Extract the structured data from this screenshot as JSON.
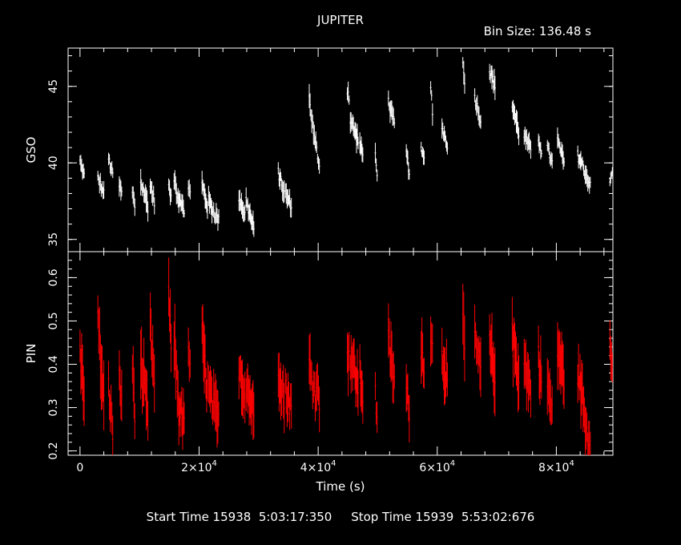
{
  "chart_data": {
    "type": "scatter",
    "title": "JUPITER",
    "bin_size_label": "Bin Size:  136.48 s",
    "xlabel": "Time (s)",
    "xlim": [
      -2000,
      89500
    ],
    "x_ticks": [
      {
        "value": 0,
        "mantissa": "0",
        "exp": ""
      },
      {
        "value": 20000,
        "mantissa": "2×10",
        "exp": "4"
      },
      {
        "value": 40000,
        "mantissa": "4×10",
        "exp": "4"
      },
      {
        "value": 60000,
        "mantissa": "6×10",
        "exp": "4"
      },
      {
        "value": 80000,
        "mantissa": "8×10",
        "exp": "4"
      }
    ],
    "panels": [
      {
        "ylabel": "GSO",
        "ylim": [
          34.2,
          47.5
        ],
        "yticks": [
          35,
          40,
          45
        ],
        "color": "#ffffff",
        "segments": [
          {
            "x0": 0,
            "x1": 700,
            "y0": 40.1,
            "y1": 39.2,
            "spread": 0.6
          },
          {
            "x0": 3000,
            "x1": 4000,
            "y0": 39.0,
            "y1": 38.0,
            "spread": 0.7
          },
          {
            "x0": 4800,
            "x1": 5500,
            "y0": 40.3,
            "y1": 39.2,
            "spread": 0.7
          },
          {
            "x0": 6600,
            "x1": 7000,
            "y0": 38.5,
            "y1": 38.0,
            "spread": 0.8
          },
          {
            "x0": 8800,
            "x1": 9200,
            "y0": 38.0,
            "y1": 37.2,
            "spread": 1.0
          },
          {
            "x0": 10200,
            "x1": 11400,
            "y0": 38.8,
            "y1": 37.2,
            "spread": 1.0
          },
          {
            "x0": 11800,
            "x1": 12500,
            "y0": 38.5,
            "y1": 37.5,
            "spread": 0.8
          },
          {
            "x0": 14900,
            "x1": 15300,
            "y0": 38.5,
            "y1": 37.6,
            "spread": 0.7
          },
          {
            "x0": 15800,
            "x1": 16600,
            "y0": 39.0,
            "y1": 37.5,
            "spread": 0.8
          },
          {
            "x0": 16700,
            "x1": 17500,
            "y0": 37.8,
            "y1": 36.8,
            "spread": 0.7
          },
          {
            "x0": 18200,
            "x1": 18500,
            "y0": 38.5,
            "y1": 38.0,
            "spread": 0.8
          },
          {
            "x0": 20500,
            "x1": 21400,
            "y0": 38.6,
            "y1": 37.2,
            "spread": 0.9
          },
          {
            "x0": 21600,
            "x1": 23300,
            "y0": 37.5,
            "y1": 36.2,
            "spread": 0.9
          },
          {
            "x0": 26700,
            "x1": 27700,
            "y0": 37.8,
            "y1": 36.6,
            "spread": 0.8
          },
          {
            "x0": 27900,
            "x1": 29200,
            "y0": 37.6,
            "y1": 35.6,
            "spread": 0.9
          },
          {
            "x0": 33300,
            "x1": 34300,
            "y0": 39.4,
            "y1": 38.0,
            "spread": 0.8
          },
          {
            "x0": 34500,
            "x1": 35500,
            "y0": 38.0,
            "y1": 37.2,
            "spread": 0.8
          },
          {
            "x0": 38500,
            "x1": 39500,
            "y0": 44.2,
            "y1": 41.2,
            "spread": 0.9
          },
          {
            "x0": 39600,
            "x1": 40200,
            "y0": 41.2,
            "y1": 39.8,
            "spread": 0.8
          },
          {
            "x0": 44900,
            "x1": 45200,
            "y0": 44.8,
            "y1": 44.3,
            "spread": 0.8
          },
          {
            "x0": 45400,
            "x1": 46700,
            "y0": 42.8,
            "y1": 41.5,
            "spread": 0.9
          },
          {
            "x0": 47000,
            "x1": 47500,
            "y0": 41.2,
            "y1": 40.5,
            "spread": 0.8
          },
          {
            "x0": 49600,
            "x1": 49900,
            "y0": 40.5,
            "y1": 39.5,
            "spread": 0.9
          },
          {
            "x0": 51800,
            "x1": 52800,
            "y0": 44.0,
            "y1": 42.5,
            "spread": 0.8
          },
          {
            "x0": 54800,
            "x1": 55300,
            "y0": 40.6,
            "y1": 39.5,
            "spread": 0.8
          },
          {
            "x0": 57300,
            "x1": 57800,
            "y0": 40.8,
            "y1": 40.2,
            "spread": 0.6
          },
          {
            "x0": 58900,
            "x1": 59200,
            "y0": 45.0,
            "y1": 43.5,
            "spread": 0.9
          },
          {
            "x0": 60800,
            "x1": 61700,
            "y0": 42.3,
            "y1": 41.2,
            "spread": 0.8
          },
          {
            "x0": 64300,
            "x1": 64600,
            "y0": 46.3,
            "y1": 45.5,
            "spread": 0.9
          },
          {
            "x0": 66300,
            "x1": 67300,
            "y0": 44.3,
            "y1": 42.8,
            "spread": 0.8
          },
          {
            "x0": 68800,
            "x1": 69700,
            "y0": 46.0,
            "y1": 45.0,
            "spread": 0.9
          },
          {
            "x0": 72600,
            "x1": 73700,
            "y0": 43.8,
            "y1": 42.0,
            "spread": 0.9
          },
          {
            "x0": 74600,
            "x1": 75700,
            "y0": 41.8,
            "y1": 40.8,
            "spread": 0.8
          },
          {
            "x0": 77000,
            "x1": 77500,
            "y0": 41.6,
            "y1": 40.8,
            "spread": 0.7
          },
          {
            "x0": 78500,
            "x1": 79300,
            "y0": 41.0,
            "y1": 40.0,
            "spread": 0.7
          },
          {
            "x0": 80200,
            "x1": 81300,
            "y0": 41.5,
            "y1": 40.0,
            "spread": 0.8
          },
          {
            "x0": 83600,
            "x1": 84500,
            "y0": 40.5,
            "y1": 39.8,
            "spread": 0.8
          },
          {
            "x0": 84600,
            "x1": 85700,
            "y0": 39.6,
            "y1": 38.5,
            "spread": 0.7
          },
          {
            "x0": 89000,
            "x1": 89400,
            "y0": 38.7,
            "y1": 39.5,
            "spread": 0.6
          }
        ]
      },
      {
        "ylabel": "PIN",
        "ylim": [
          0.19,
          0.66
        ],
        "yticks": [
          0.2,
          0.3,
          0.4,
          0.5,
          0.6
        ],
        "color": "#ff0000",
        "segments": [
          {
            "x0": 0,
            "x1": 700,
            "y0": 0.42,
            "y1": 0.34,
            "spread": 0.08
          },
          {
            "x0": 3000,
            "x1": 4000,
            "y0": 0.5,
            "y1": 0.3,
            "spread": 0.09
          },
          {
            "x0": 4800,
            "x1": 5500,
            "y0": 0.35,
            "y1": 0.24,
            "spread": 0.08
          },
          {
            "x0": 6600,
            "x1": 7000,
            "y0": 0.38,
            "y1": 0.3,
            "spread": 0.08
          },
          {
            "x0": 8800,
            "x1": 9200,
            "y0": 0.4,
            "y1": 0.3,
            "spread": 0.08
          },
          {
            "x0": 10200,
            "x1": 11400,
            "y0": 0.4,
            "y1": 0.28,
            "spread": 0.09
          },
          {
            "x0": 11800,
            "x1": 12500,
            "y0": 0.48,
            "y1": 0.36,
            "spread": 0.08
          },
          {
            "x0": 14900,
            "x1": 15300,
            "y0": 0.55,
            "y1": 0.44,
            "spread": 0.09
          },
          {
            "x0": 15800,
            "x1": 16600,
            "y0": 0.46,
            "y1": 0.3,
            "spread": 0.09
          },
          {
            "x0": 16700,
            "x1": 17500,
            "y0": 0.3,
            "y1": 0.26,
            "spread": 0.07
          },
          {
            "x0": 18200,
            "x1": 18500,
            "y0": 0.45,
            "y1": 0.38,
            "spread": 0.08
          },
          {
            "x0": 20500,
            "x1": 21400,
            "y0": 0.46,
            "y1": 0.34,
            "spread": 0.09
          },
          {
            "x0": 21600,
            "x1": 23300,
            "y0": 0.34,
            "y1": 0.26,
            "spread": 0.08
          },
          {
            "x0": 26700,
            "x1": 27700,
            "y0": 0.4,
            "y1": 0.33,
            "spread": 0.08
          },
          {
            "x0": 27900,
            "x1": 29200,
            "y0": 0.36,
            "y1": 0.28,
            "spread": 0.08
          },
          {
            "x0": 33300,
            "x1": 34300,
            "y0": 0.4,
            "y1": 0.32,
            "spread": 0.08
          },
          {
            "x0": 34500,
            "x1": 35500,
            "y0": 0.34,
            "y1": 0.3,
            "spread": 0.07
          },
          {
            "x0": 38500,
            "x1": 39500,
            "y0": 0.4,
            "y1": 0.33,
            "spread": 0.08
          },
          {
            "x0": 39600,
            "x1": 40200,
            "y0": 0.36,
            "y1": 0.32,
            "spread": 0.07
          },
          {
            "x0": 44900,
            "x1": 45200,
            "y0": 0.45,
            "y1": 0.4,
            "spread": 0.09
          },
          {
            "x0": 45400,
            "x1": 46700,
            "y0": 0.42,
            "y1": 0.35,
            "spread": 0.08
          },
          {
            "x0": 47000,
            "x1": 47500,
            "y0": 0.38,
            "y1": 0.33,
            "spread": 0.07
          },
          {
            "x0": 49600,
            "x1": 49900,
            "y0": 0.33,
            "y1": 0.28,
            "spread": 0.07
          },
          {
            "x0": 51800,
            "x1": 52800,
            "y0": 0.45,
            "y1": 0.36,
            "spread": 0.08
          },
          {
            "x0": 54800,
            "x1": 55300,
            "y0": 0.34,
            "y1": 0.3,
            "spread": 0.07
          },
          {
            "x0": 57300,
            "x1": 57800,
            "y0": 0.44,
            "y1": 0.4,
            "spread": 0.08
          },
          {
            "x0": 58900,
            "x1": 59200,
            "y0": 0.48,
            "y1": 0.43,
            "spread": 0.09
          },
          {
            "x0": 60800,
            "x1": 61700,
            "y0": 0.42,
            "y1": 0.37,
            "spread": 0.08
          },
          {
            "x0": 64300,
            "x1": 64600,
            "y0": 0.48,
            "y1": 0.43,
            "spread": 0.09
          },
          {
            "x0": 66300,
            "x1": 67300,
            "y0": 0.46,
            "y1": 0.38,
            "spread": 0.08
          },
          {
            "x0": 68800,
            "x1": 69700,
            "y0": 0.44,
            "y1": 0.38,
            "spread": 0.09
          },
          {
            "x0": 72600,
            "x1": 73700,
            "y0": 0.46,
            "y1": 0.38,
            "spread": 0.09
          },
          {
            "x0": 74600,
            "x1": 75700,
            "y0": 0.4,
            "y1": 0.34,
            "spread": 0.08
          },
          {
            "x0": 77000,
            "x1": 77500,
            "y0": 0.42,
            "y1": 0.36,
            "spread": 0.08
          },
          {
            "x0": 78500,
            "x1": 79300,
            "y0": 0.36,
            "y1": 0.28,
            "spread": 0.08
          },
          {
            "x0": 80200,
            "x1": 81300,
            "y0": 0.44,
            "y1": 0.36,
            "spread": 0.09
          },
          {
            "x0": 83600,
            "x1": 84500,
            "y0": 0.38,
            "y1": 0.32,
            "spread": 0.08
          },
          {
            "x0": 84600,
            "x1": 85700,
            "y0": 0.28,
            "y1": 0.21,
            "spread": 0.07
          },
          {
            "x0": 89000,
            "x1": 89400,
            "y0": 0.46,
            "y1": 0.42,
            "spread": 0.08
          }
        ]
      }
    ]
  },
  "footer": {
    "start_label": "Start Time 15938",
    "start_time": "5:03:17:350",
    "stop_label": "Stop Time 15939",
    "stop_time": "5:53:02:676"
  }
}
